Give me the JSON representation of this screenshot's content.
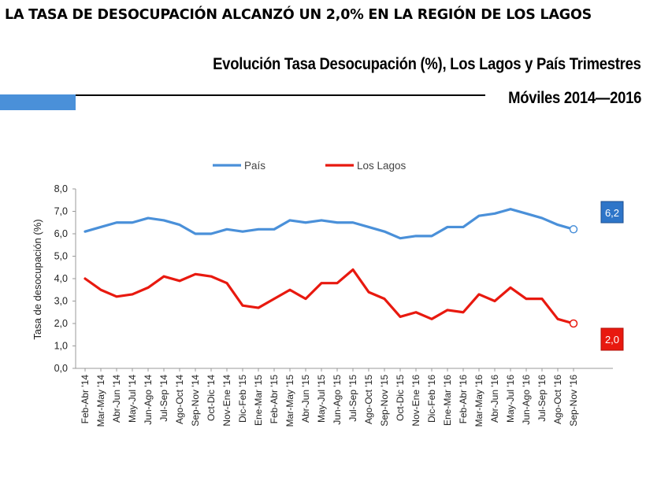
{
  "headline": "LA TASA DE DESOCUPACIÓN ALCANZÓ UN 2,0% EN LA REGIÓN DE LOS LAGOS",
  "subtitle_line1": "Evolución Tasa Desocupación (%), Los Lagos y País Trimestres",
  "subtitle_line2": "Móviles 2014—2016",
  "colors": {
    "pais": "#4a90d9",
    "los_lagos": "#e8190f",
    "accent_bar": "#4a90d9"
  },
  "chart_data": {
    "type": "line",
    "ylabel": "Tasa de desocupación (%)",
    "xlabel": "",
    "ylim": [
      0,
      8
    ],
    "yticks": [
      "0,0",
      "1,0",
      "2,0",
      "3,0",
      "4,0",
      "5,0",
      "6,0",
      "7,0",
      "8,0"
    ],
    "legend_position": "top",
    "grid": false,
    "categories": [
      "Feb-Abr '14",
      "Mar-May '14",
      "Abr-Jun '14",
      "May-Jul '14",
      "Jun-Ago '14",
      "Jul-Sep '14",
      "Ago-Oct '14",
      "Sep-Nov '14",
      "Oct-Dic '14",
      "Nov-Ene '14",
      "Dic-Feb '15",
      "Ene-Mar '15",
      "Feb-Abr '15",
      "Mar-May '15",
      "Abr-Jun '15",
      "May-Jul '15",
      "Jun-Ago '15",
      "Jul-Sep '15",
      "Ago-Oct '15",
      "Sep-Nov '15",
      "Oct-Dic '15",
      "Nov-Ene '16",
      "Dic-Feb '16",
      "Ene-Mar '16",
      "Feb-Abr '16",
      "Mar-May '16",
      "Abr-Jun '16",
      "May-Jul '16",
      "Jun-Ago '16",
      "Jul-Sep '16",
      "Ago-Oct '16",
      "Sep-Nov '16"
    ],
    "series": [
      {
        "name": "País",
        "values": [
          6.1,
          6.3,
          6.5,
          6.5,
          6.7,
          6.6,
          6.4,
          6.0,
          6.0,
          6.2,
          6.1,
          6.2,
          6.2,
          6.6,
          6.5,
          6.6,
          6.5,
          6.5,
          6.3,
          6.1,
          5.8,
          5.9,
          5.9,
          6.3,
          6.3,
          6.8,
          6.9,
          7.1,
          6.9,
          6.7,
          6.4,
          6.2
        ]
      },
      {
        "name": "Los Lagos",
        "values": [
          4.0,
          3.5,
          3.2,
          3.3,
          3.6,
          4.1,
          3.9,
          4.2,
          4.1,
          3.8,
          2.8,
          2.7,
          3.1,
          3.5,
          3.1,
          3.8,
          3.8,
          4.4,
          3.4,
          3.1,
          2.3,
          2.5,
          2.2,
          2.6,
          2.5,
          3.3,
          3.0,
          3.6,
          3.1,
          3.1,
          2.2,
          2.0
        ]
      }
    ],
    "end_labels": {
      "pais": "6,2",
      "los_lagos": "2,0"
    }
  }
}
